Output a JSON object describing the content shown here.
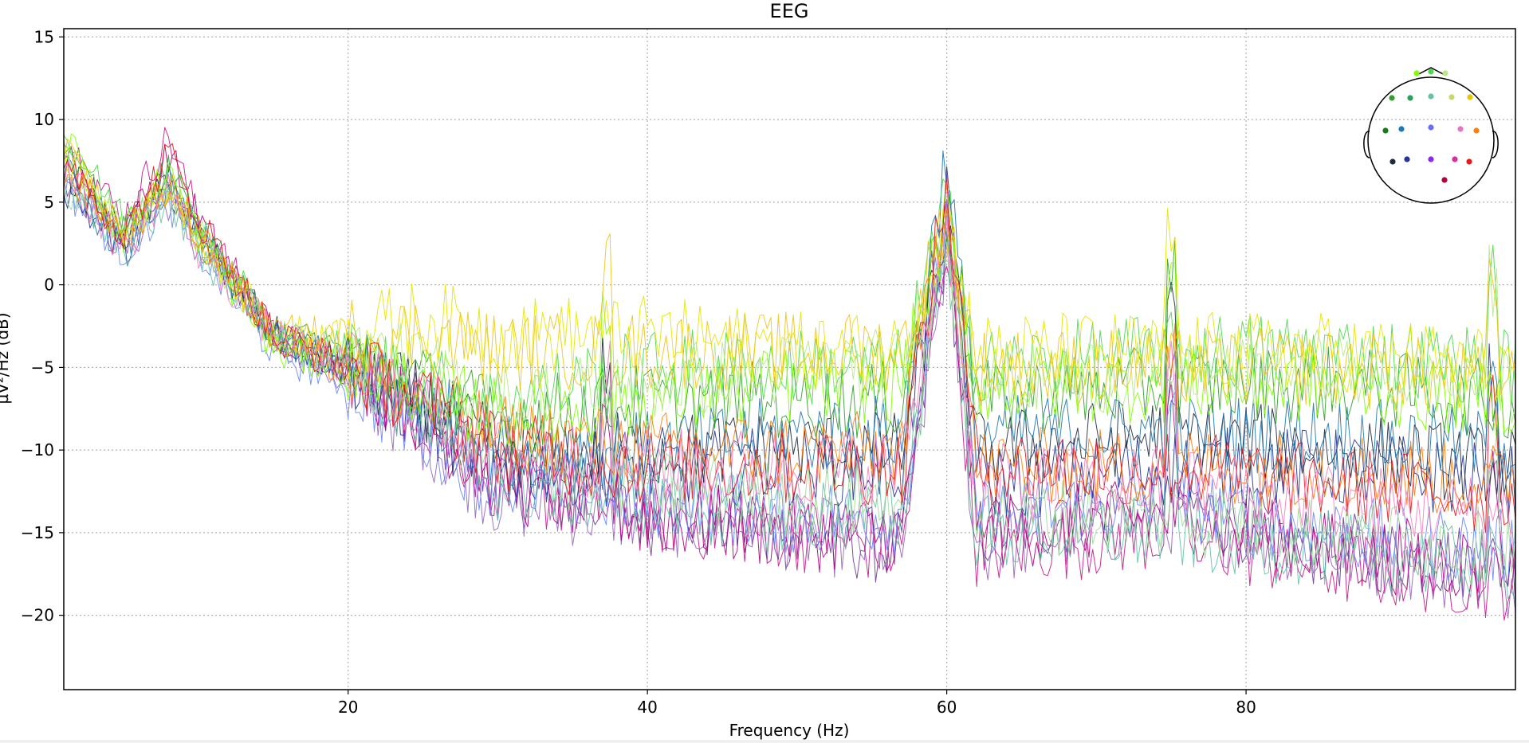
{
  "chart_data": {
    "type": "line",
    "title": "EEG",
    "xlabel": "Frequency (Hz)",
    "ylabel": "µV²/Hz (dB)",
    "xlim": [
      1,
      98
    ],
    "ylim": [
      -24.5,
      15.5
    ],
    "xticks": [
      20,
      40,
      60,
      80
    ],
    "yticks": [
      15,
      10,
      5,
      0,
      -5,
      -10,
      -15,
      -20
    ],
    "grid": true,
    "legend": "none (sensor location inset top-right)",
    "frequency_step": 0.25,
    "series": [
      {
        "color": "#6a3d9a",
        "values": [
          [
            1,
            6
          ],
          [
            5,
            3
          ],
          [
            8,
            6
          ],
          [
            10,
            3
          ],
          [
            15,
            -3
          ],
          [
            20,
            -5
          ],
          [
            25,
            -8
          ],
          [
            30,
            -12
          ],
          [
            40,
            -14
          ],
          [
            50,
            -15
          ],
          [
            57,
            -16
          ],
          [
            60,
            3
          ],
          [
            62,
            -15
          ],
          [
            75,
            -13
          ],
          [
            85,
            -16
          ],
          [
            98,
            -17
          ]
        ]
      },
      {
        "color": "#9467bd",
        "values": [
          [
            1,
            7
          ],
          [
            5,
            2
          ],
          [
            8,
            5
          ],
          [
            10,
            2
          ],
          [
            15,
            -3
          ],
          [
            20,
            -6
          ],
          [
            25,
            -9
          ],
          [
            30,
            -13
          ],
          [
            40,
            -14
          ],
          [
            50,
            -15
          ],
          [
            57,
            -16
          ],
          [
            60,
            2
          ],
          [
            62,
            -16
          ],
          [
            75,
            -14
          ],
          [
            85,
            -16
          ],
          [
            98,
            -18
          ]
        ]
      },
      {
        "color": "#c51b8a",
        "values": [
          [
            1,
            9
          ],
          [
            5,
            4
          ],
          [
            8,
            9
          ],
          [
            10,
            4
          ],
          [
            15,
            -3
          ],
          [
            20,
            -5
          ],
          [
            25,
            -8
          ],
          [
            30,
            -12
          ],
          [
            40,
            -14
          ],
          [
            50,
            -15
          ],
          [
            57,
            -16
          ],
          [
            60,
            3
          ],
          [
            62,
            -16
          ],
          [
            75,
            -15
          ],
          [
            85,
            -17
          ],
          [
            98,
            -18
          ]
        ]
      },
      {
        "color": "#ae017e",
        "values": [
          [
            1,
            8
          ],
          [
            5,
            3
          ],
          [
            8,
            8
          ],
          [
            10,
            4
          ],
          [
            15,
            -3
          ],
          [
            20,
            -5
          ],
          [
            25,
            -8
          ],
          [
            30,
            -12
          ],
          [
            40,
            -14
          ],
          [
            50,
            -15
          ],
          [
            57,
            -15
          ],
          [
            60,
            4
          ],
          [
            62,
            -15
          ],
          [
            75,
            -14
          ],
          [
            85,
            -16
          ],
          [
            98,
            -17
          ]
        ]
      },
      {
        "color": "#6b8afd",
        "values": [
          [
            1,
            6
          ],
          [
            5,
            2
          ],
          [
            8,
            5
          ],
          [
            10,
            2
          ],
          [
            15,
            -4
          ],
          [
            20,
            -6
          ],
          [
            25,
            -9
          ],
          [
            30,
            -12
          ],
          [
            40,
            -13
          ],
          [
            50,
            -14
          ],
          [
            57,
            -14
          ],
          [
            60,
            4
          ],
          [
            62,
            -14
          ],
          [
            75,
            -13
          ],
          [
            85,
            -15
          ],
          [
            98,
            -16
          ]
        ]
      },
      {
        "color": "#253494",
        "values": [
          [
            1,
            6
          ],
          [
            5,
            2
          ],
          [
            8,
            6
          ],
          [
            10,
            3
          ],
          [
            15,
            -3
          ],
          [
            20,
            -5
          ],
          [
            25,
            -8
          ],
          [
            30,
            -11
          ],
          [
            40,
            -11
          ],
          [
            50,
            -11
          ],
          [
            57,
            -11
          ],
          [
            60,
            5
          ],
          [
            62,
            -12
          ],
          [
            75,
            -11
          ],
          [
            85,
            -11
          ],
          [
            98,
            -12
          ]
        ]
      },
      {
        "color": "#1f2b3e",
        "values": [
          [
            1,
            7
          ],
          [
            5,
            3
          ],
          [
            8,
            6
          ],
          [
            10,
            3
          ],
          [
            15,
            -3
          ],
          [
            20,
            -5
          ],
          [
            25,
            -7
          ],
          [
            30,
            -10
          ],
          [
            40,
            -10
          ],
          [
            50,
            -10
          ],
          [
            57,
            -10
          ],
          [
            60,
            4
          ],
          [
            62,
            -10
          ],
          [
            75,
            -9
          ],
          [
            85,
            -10
          ],
          [
            98,
            -11
          ]
        ]
      },
      {
        "color": "#1f78b4",
        "values": [
          [
            1,
            7
          ],
          [
            5,
            2
          ],
          [
            8,
            6
          ],
          [
            10,
            3
          ],
          [
            15,
            -3
          ],
          [
            20,
            -5
          ],
          [
            25,
            -7
          ],
          [
            30,
            -10
          ],
          [
            40,
            -10
          ],
          [
            50,
            -9
          ],
          [
            57,
            -9
          ],
          [
            60,
            8
          ],
          [
            62,
            -9
          ],
          [
            75,
            -9
          ],
          [
            85,
            -9
          ],
          [
            98,
            -10
          ]
        ]
      },
      {
        "color": "#66c2a5",
        "values": [
          [
            1,
            6
          ],
          [
            5,
            2
          ],
          [
            8,
            5
          ],
          [
            10,
            2
          ],
          [
            15,
            -3
          ],
          [
            20,
            -5
          ],
          [
            25,
            -8
          ],
          [
            30,
            -12
          ],
          [
            40,
            -13
          ],
          [
            50,
            -14
          ],
          [
            57,
            -14
          ],
          [
            60,
            3
          ],
          [
            62,
            -15
          ],
          [
            75,
            -15
          ],
          [
            85,
            -16
          ],
          [
            98,
            -17
          ]
        ]
      },
      {
        "color": "#a1d99b",
        "values": [
          [
            1,
            6
          ],
          [
            5,
            3
          ],
          [
            8,
            6
          ],
          [
            10,
            3
          ],
          [
            15,
            -3
          ],
          [
            20,
            -5
          ],
          [
            25,
            -7
          ],
          [
            30,
            -11
          ],
          [
            40,
            -12
          ],
          [
            50,
            -13
          ],
          [
            57,
            -13
          ],
          [
            60,
            3
          ],
          [
            62,
            -14
          ],
          [
            75,
            -14
          ],
          [
            85,
            -15
          ],
          [
            98,
            -16
          ]
        ]
      },
      {
        "color": "#33a02c",
        "values": [
          [
            1,
            8
          ],
          [
            5,
            3
          ],
          [
            8,
            7
          ],
          [
            10,
            3
          ],
          [
            15,
            -3
          ],
          [
            20,
            -4
          ],
          [
            25,
            -6
          ],
          [
            30,
            -8
          ],
          [
            40,
            -7
          ],
          [
            50,
            -7
          ],
          [
            57,
            -7
          ],
          [
            60,
            5
          ],
          [
            62,
            -7
          ],
          [
            75,
            -6
          ],
          [
            85,
            -6
          ],
          [
            98,
            -7
          ]
        ]
      },
      {
        "color": "#4dd94d",
        "values": [
          [
            1,
            9
          ],
          [
            5,
            4
          ],
          [
            8,
            7
          ],
          [
            10,
            4
          ],
          [
            15,
            -3
          ],
          [
            20,
            -4
          ],
          [
            25,
            -6
          ],
          [
            30,
            -7
          ],
          [
            40,
            -5
          ],
          [
            50,
            -5
          ],
          [
            57,
            -5
          ],
          [
            60,
            5
          ],
          [
            62,
            -5
          ],
          [
            75,
            -4
          ],
          [
            85,
            -4
          ],
          [
            98,
            -5
          ]
        ]
      },
      {
        "color": "#7fff00",
        "values": [
          [
            1,
            9
          ],
          [
            5,
            3
          ],
          [
            8,
            7
          ],
          [
            10,
            3
          ],
          [
            15,
            -4
          ],
          [
            20,
            -5
          ],
          [
            25,
            -6
          ],
          [
            30,
            -8
          ],
          [
            40,
            -7
          ],
          [
            50,
            -6
          ],
          [
            57,
            -6
          ],
          [
            60,
            4
          ],
          [
            62,
            -6
          ],
          [
            75,
            -6
          ],
          [
            85,
            -6
          ],
          [
            98,
            -7
          ]
        ]
      },
      {
        "color": "#b8e986",
        "values": [
          [
            1,
            8
          ],
          [
            5,
            3
          ],
          [
            8,
            6
          ],
          [
            10,
            3
          ],
          [
            15,
            -3
          ],
          [
            20,
            -4
          ],
          [
            25,
            -5
          ],
          [
            30,
            -7
          ],
          [
            40,
            -6
          ],
          [
            50,
            -5
          ],
          [
            57,
            -5
          ],
          [
            60,
            3
          ],
          [
            62,
            -6
          ],
          [
            75,
            -5
          ],
          [
            85,
            -5
          ],
          [
            98,
            -6
          ]
        ]
      },
      {
        "color": "#e6e600",
        "values": [
          [
            1,
            8
          ],
          [
            5,
            3
          ],
          [
            8,
            6
          ],
          [
            10,
            3
          ],
          [
            15,
            -3
          ],
          [
            20,
            -3
          ],
          [
            25,
            -2
          ],
          [
            30,
            -3
          ],
          [
            40,
            -3
          ],
          [
            50,
            -4
          ],
          [
            57,
            -4
          ],
          [
            60,
            4
          ],
          [
            62,
            -4
          ],
          [
            75,
            -4
          ],
          [
            85,
            -4
          ],
          [
            98,
            -5
          ]
        ]
      },
      {
        "color": "#f0c419",
        "values": [
          [
            1,
            8
          ],
          [
            5,
            3
          ],
          [
            8,
            6
          ],
          [
            10,
            3
          ],
          [
            15,
            -3
          ],
          [
            20,
            -3
          ],
          [
            25,
            -3
          ],
          [
            30,
            -4
          ],
          [
            40,
            -4
          ],
          [
            50,
            -4
          ],
          [
            57,
            -4
          ],
          [
            60,
            4
          ],
          [
            62,
            -5
          ],
          [
            75,
            -5
          ],
          [
            85,
            -5
          ],
          [
            98,
            -6
          ]
        ]
      },
      {
        "color": "#ff7f0e",
        "values": [
          [
            1,
            7
          ],
          [
            5,
            3
          ],
          [
            8,
            6
          ],
          [
            10,
            3
          ],
          [
            15,
            -3
          ],
          [
            20,
            -5
          ],
          [
            25,
            -7
          ],
          [
            30,
            -9
          ],
          [
            40,
            -10
          ],
          [
            50,
            -10
          ],
          [
            57,
            -10
          ],
          [
            60,
            6
          ],
          [
            62,
            -11
          ],
          [
            75,
            -11
          ],
          [
            85,
            -11
          ],
          [
            98,
            -12
          ]
        ]
      },
      {
        "color": "#e31a1c",
        "values": [
          [
            1,
            8
          ],
          [
            5,
            3
          ],
          [
            8,
            8
          ],
          [
            10,
            4
          ],
          [
            15,
            -3
          ],
          [
            20,
            -5
          ],
          [
            25,
            -7
          ],
          [
            30,
            -10
          ],
          [
            40,
            -11
          ],
          [
            50,
            -11
          ],
          [
            57,
            -11
          ],
          [
            60,
            6
          ],
          [
            62,
            -11
          ],
          [
            75,
            -11
          ],
          [
            85,
            -12
          ],
          [
            98,
            -13
          ]
        ]
      },
      {
        "color": "#f781bf",
        "values": [
          [
            1,
            7
          ],
          [
            5,
            2
          ],
          [
            8,
            6
          ],
          [
            10,
            2
          ],
          [
            15,
            -3
          ],
          [
            20,
            -5
          ],
          [
            25,
            -7
          ],
          [
            30,
            -10
          ],
          [
            40,
            -11
          ],
          [
            50,
            -11
          ],
          [
            57,
            -11
          ],
          [
            60,
            4
          ],
          [
            62,
            -12
          ],
          [
            75,
            -12
          ],
          [
            85,
            -13
          ],
          [
            98,
            -14
          ]
        ]
      }
    ]
  },
  "inset": {
    "sensors": [
      {
        "color": "#7fff00"
      },
      {
        "color": "#4dd94d"
      },
      {
        "color": "#b8e986"
      },
      {
        "color": "#33a02c"
      },
      {
        "color": "#2ca05a"
      },
      {
        "color": "#66c2a5"
      },
      {
        "color": "#c7d96b"
      },
      {
        "color": "#e6c800"
      },
      {
        "color": "#1a7a1a"
      },
      {
        "color": "#1f78b4"
      },
      {
        "color": "#6b6bfd"
      },
      {
        "color": "#e377c2"
      },
      {
        "color": "#ff7f0e"
      },
      {
        "color": "#1f2b3e"
      },
      {
        "color": "#253494"
      },
      {
        "color": "#8a2be2"
      },
      {
        "color": "#d62f9a"
      },
      {
        "color": "#e31a1c"
      },
      {
        "color": "#b3003c"
      }
    ]
  }
}
